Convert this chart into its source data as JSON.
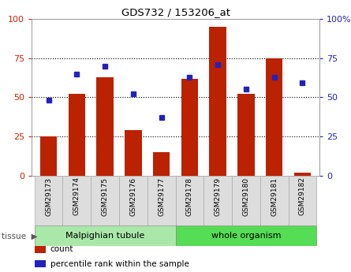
{
  "title": "GDS732 / 153206_at",
  "samples": [
    "GSM29173",
    "GSM29174",
    "GSM29175",
    "GSM29176",
    "GSM29177",
    "GSM29178",
    "GSM29179",
    "GSM29180",
    "GSM29181",
    "GSM29182"
  ],
  "count": [
    25,
    52,
    63,
    29,
    15,
    62,
    95,
    52,
    75,
    2
  ],
  "percentile": [
    48,
    65,
    70,
    52,
    37,
    63,
    71,
    55,
    63,
    59
  ],
  "bar_color": "#bb2200",
  "dot_color": "#2222bb",
  "ylim": [
    0,
    100
  ],
  "yticks": [
    0,
    25,
    50,
    75,
    100
  ],
  "grid_values": [
    25,
    50,
    75
  ],
  "tissue_groups": [
    {
      "label": "Malpighian tubule",
      "start": 0,
      "end": 5,
      "color": "#aae8aa"
    },
    {
      "label": "whole organism",
      "start": 5,
      "end": 10,
      "color": "#55dd55"
    }
  ],
  "tissue_label": "tissue",
  "legend_items": [
    {
      "label": "count",
      "color": "#bb2200"
    },
    {
      "label": "percentile rank within the sample",
      "color": "#2222bb"
    }
  ],
  "tick_label_color_left": "#cc2200",
  "tick_label_color_right": "#2222bb",
  "sample_box_color": "#dddddd",
  "sample_box_edge": "#aaaaaa"
}
